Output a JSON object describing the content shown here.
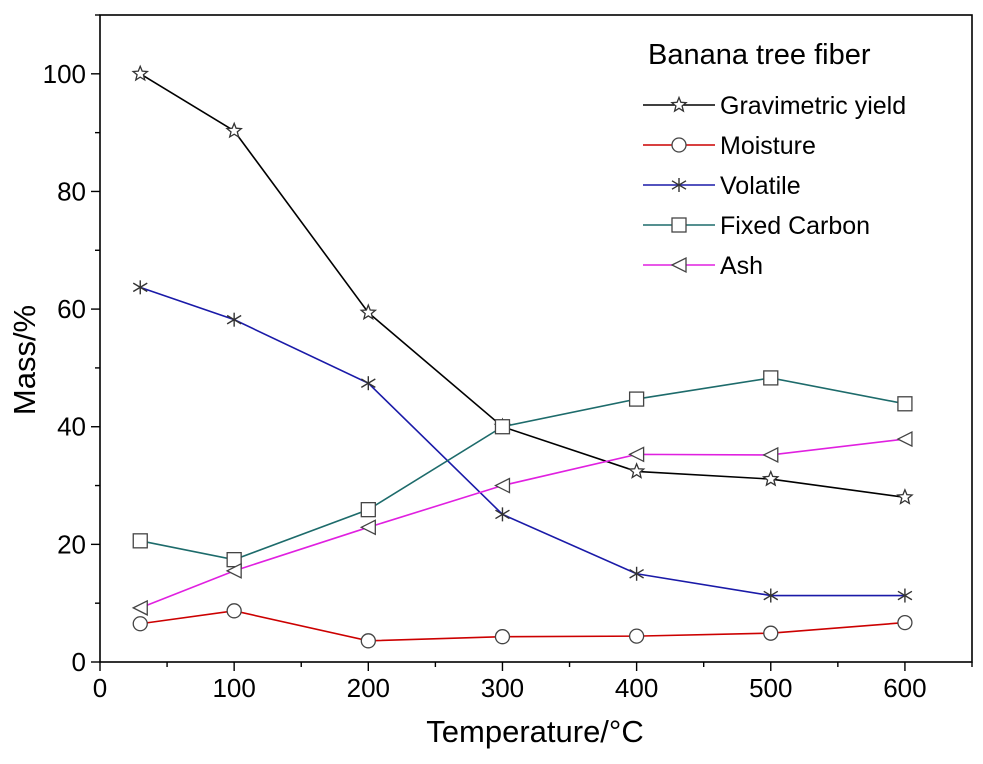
{
  "chart_data": {
    "type": "line",
    "title": "Banana tree fiber",
    "xlabel": "Temperature/°C",
    "ylabel": "Mass/%",
    "xlim": [
      0,
      650
    ],
    "ylim": [
      0,
      110
    ],
    "xticks": [
      0,
      100,
      200,
      300,
      400,
      500,
      600
    ],
    "yticks": [
      0,
      20,
      40,
      60,
      80,
      100
    ],
    "grid": false,
    "legend_position": "top-right",
    "x": [
      30,
      100,
      200,
      300,
      400,
      500,
      600
    ],
    "series": [
      {
        "name": "Gravimetric yield",
        "color": "#000000",
        "marker": "star",
        "values": [
          100,
          90.3,
          59.4,
          40.0,
          32.4,
          31.1,
          28.0
        ]
      },
      {
        "name": "Moisture",
        "color": "#cc0000",
        "marker": "circle",
        "values": [
          6.5,
          8.7,
          3.6,
          4.3,
          4.4,
          4.9,
          6.7
        ]
      },
      {
        "name": "Volatile",
        "color": "#1a1aa8",
        "marker": "asterisk",
        "values": [
          63.7,
          58.2,
          47.4,
          25.1,
          15.0,
          11.3,
          11.3
        ]
      },
      {
        "name": "Fixed Carbon",
        "color": "#1d6b6b",
        "marker": "square",
        "values": [
          20.6,
          17.4,
          25.9,
          40.0,
          44.7,
          48.3,
          43.9
        ]
      },
      {
        "name": "Ash",
        "color": "#e020e0",
        "marker": "triangle-left",
        "values": [
          9.2,
          15.5,
          22.9,
          30.0,
          35.3,
          35.2,
          37.9
        ]
      }
    ]
  }
}
